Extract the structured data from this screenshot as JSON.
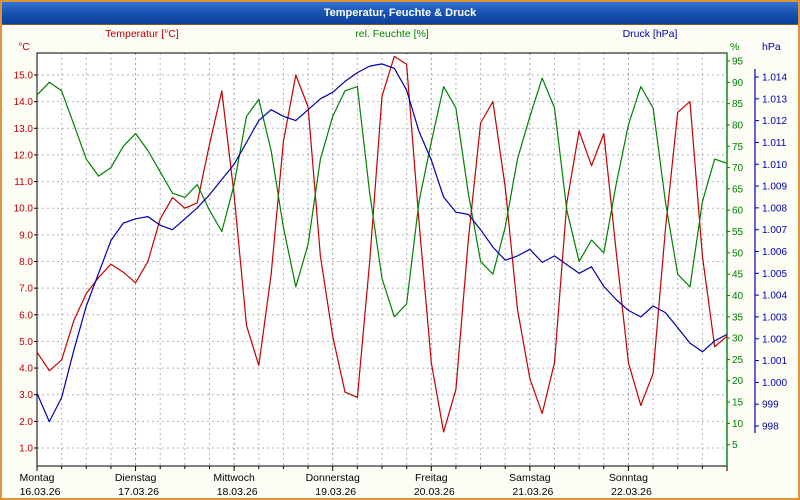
{
  "window": {
    "title": "Temperatur, Feuchte & Druck"
  },
  "header": {
    "temp_label": "Temperatur [°C]",
    "humidity_label": "rel. Feuchte [%]",
    "pressure_label": "Druck [hPa]"
  },
  "axes": {
    "temp_unit": "°C",
    "humidity_unit": "%",
    "pressure_unit": "hPa",
    "temp_ticks": [
      "15.0",
      "14.0",
      "13.0",
      "12.0",
      "11.0",
      "10.0",
      "9.0",
      "8.0",
      "7.0",
      "6.0",
      "5.0",
      "4.0",
      "3.0",
      "2.0",
      "1.0"
    ],
    "humidity_ticks": [
      "95",
      "90",
      "85",
      "80",
      "75",
      "70",
      "65",
      "60",
      "55",
      "50",
      "45",
      "40",
      "35",
      "30",
      "25",
      "20",
      "15",
      "10",
      "5"
    ],
    "pressure_ticks": [
      "1.014",
      "1.013",
      "1.012",
      "1.011",
      "1.010",
      "1.009",
      "1.008",
      "1.007",
      "1.006",
      "1.005",
      "1.004",
      "1.003",
      "1.002",
      "1.001",
      "1.000",
      "999",
      "998"
    ],
    "days": [
      {
        "name": "Montag",
        "date": "16.03.26"
      },
      {
        "name": "Dienstag",
        "date": "17.03.26"
      },
      {
        "name": "Mittwoch",
        "date": "18.03.26"
      },
      {
        "name": "Donnerstag",
        "date": "19.03.26"
      },
      {
        "name": "Freitag",
        "date": "20.03.26"
      },
      {
        "name": "Samstag",
        "date": "21.03.26"
      },
      {
        "name": "Sonntag",
        "date": "22.03.26"
      }
    ]
  },
  "colors": {
    "temp": "#c40000",
    "humidity": "#008000",
    "pressure": "#0000ad",
    "grid": "#b4b4b4",
    "axis": "#000000",
    "window_border": "#e0943a"
  },
  "chart_data": {
    "type": "line",
    "title": "Temperatur, Feuchte & Druck",
    "x_start": "16.03.26 00:00",
    "x_end": "23.03.26 00:00",
    "sample_interval_hours": 3,
    "x_tick_labels_days": [
      "Montag 16.03.26",
      "Dienstag 17.03.26",
      "Mittwoch 18.03.26",
      "Donnerstag 19.03.26",
      "Freitag 20.03.26",
      "Samstag 21.03.26",
      "Sonntag 22.03.26"
    ],
    "grid": true,
    "legend_position": "top",
    "y_axes": [
      {
        "name": "Temperatur",
        "unit": "°C",
        "side": "left",
        "min": 1.0,
        "max": 15.0,
        "tick_step": 1.0
      },
      {
        "name": "rel. Feuchte",
        "unit": "%",
        "side": "right",
        "min": 0,
        "max": 95,
        "tick_step": 5
      },
      {
        "name": "Druck",
        "unit": "hPa",
        "side": "far-right",
        "min": 998,
        "max": 1014,
        "tick_step": 1
      }
    ],
    "series": [
      {
        "name": "Temperatur",
        "unit": "°C",
        "color": "#c40000",
        "values": [
          4.6,
          3.9,
          4.3,
          5.8,
          6.8,
          7.4,
          7.9,
          7.6,
          7.2,
          8.0,
          9.6,
          10.4,
          10.0,
          10.2,
          12.4,
          14.4,
          10.5,
          5.6,
          4.1,
          7.5,
          12.5,
          15.0,
          13.8,
          8.2,
          5.2,
          3.1,
          2.9,
          8.0,
          14.2,
          15.7,
          15.4,
          9.5,
          4.2,
          1.6,
          3.2,
          8.8,
          13.2,
          14.0,
          10.8,
          6.2,
          3.6,
          2.3,
          4.2,
          10.2,
          12.9,
          11.6,
          12.8,
          8.4,
          4.2,
          2.6,
          3.8,
          9.2,
          13.6,
          14.0,
          8.2,
          4.8,
          5.2
        ]
      },
      {
        "name": "rel. Feuchte",
        "unit": "%",
        "color": "#008000",
        "values": [
          87,
          90,
          88,
          80,
          72,
          68,
          70,
          75,
          78,
          74,
          69,
          64,
          63,
          66,
          60,
          55,
          66,
          82,
          86,
          74,
          56,
          42,
          52,
          72,
          82,
          88,
          89,
          64,
          44,
          35,
          38,
          62,
          76,
          89,
          84,
          64,
          48,
          45,
          56,
          72,
          82,
          91,
          84,
          60,
          48,
          53,
          50,
          66,
          80,
          89,
          84,
          62,
          45,
          42,
          62,
          72,
          71
        ]
      },
      {
        "name": "Druck",
        "unit": "hPa",
        "color": "#0000ad",
        "values": [
          999.5,
          998.2,
          999.3,
          1001.5,
          1003.5,
          1005.0,
          1006.5,
          1007.3,
          1007.5,
          1007.6,
          1007.2,
          1007.0,
          1007.5,
          1008.0,
          1008.6,
          1009.3,
          1010.0,
          1011.0,
          1012.0,
          1012.5,
          1012.2,
          1012.0,
          1012.5,
          1013.0,
          1013.3,
          1013.8,
          1014.2,
          1014.5,
          1014.6,
          1014.4,
          1013.4,
          1011.5,
          1010.2,
          1008.5,
          1007.8,
          1007.7,
          1007.0,
          1006.2,
          1005.6,
          1005.8,
          1006.1,
          1005.5,
          1005.8,
          1005.4,
          1005.0,
          1005.3,
          1004.4,
          1003.8,
          1003.3,
          1003.0,
          1003.5,
          1003.2,
          1002.5,
          1001.8,
          1001.4,
          1001.9,
          1002.2
        ]
      }
    ]
  }
}
